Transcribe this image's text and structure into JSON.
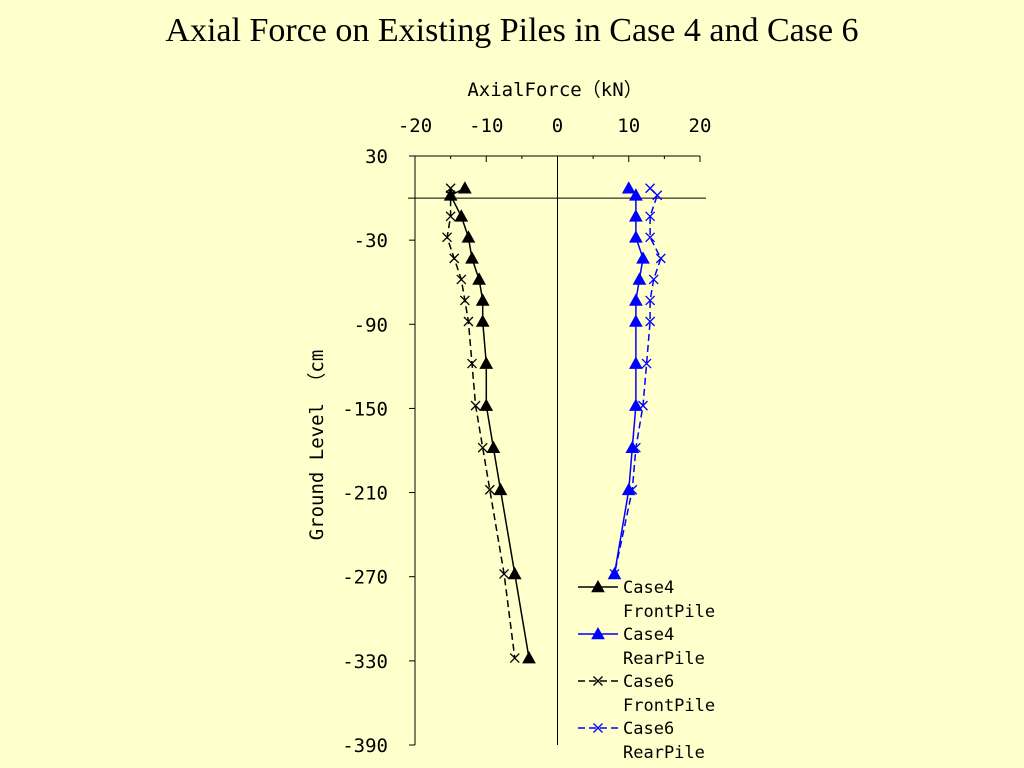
{
  "chart_data": {
    "type": "line",
    "title": "Axial Force on Existing Piles in Case 4 and Case 6",
    "xlabel": "AxialForce（kN）",
    "ylabel": "Ground Level （cm",
    "xlim": [
      -20,
      20
    ],
    "ylim": [
      -390,
      30
    ],
    "x_axis_position": "top",
    "x_ticks": [
      "-20",
      "-10",
      "0",
      "10",
      "20"
    ],
    "y_ticks": [
      "30",
      "-30",
      "-90",
      "-150",
      "-210",
      "-270",
      "-330",
      "-390"
    ],
    "x_tick_values": [
      -20,
      -10,
      0,
      10,
      20
    ],
    "y_tick_values": [
      30,
      -30,
      -90,
      -150,
      -210,
      -270,
      -330,
      -390
    ],
    "ground_line_level": 0,
    "grid": false,
    "legend_position": "bottom-right",
    "series": [
      {
        "name": "Case4 FrontPile",
        "legend_lines": [
          "Case4",
          "FrontPile"
        ],
        "color": "#000000",
        "line": "solid",
        "marker": "triangle",
        "points": [
          [
            -13,
            7
          ],
          [
            -15,
            2
          ],
          [
            -13.5,
            -13
          ],
          [
            -12.5,
            -28
          ],
          [
            -12,
            -43
          ],
          [
            -11,
            -58
          ],
          [
            -10.5,
            -73
          ],
          [
            -10.5,
            -88
          ],
          [
            -10,
            -118
          ],
          [
            -10,
            -148
          ],
          [
            -9,
            -178
          ],
          [
            -8,
            -208
          ],
          [
            -6,
            -268
          ],
          [
            -4,
            -328
          ]
        ]
      },
      {
        "name": "Case4 RearPile",
        "legend_lines": [
          "Case4",
          "RearPile"
        ],
        "color": "#0000ff",
        "line": "solid",
        "marker": "triangle",
        "points": [
          [
            10,
            7
          ],
          [
            11,
            2
          ],
          [
            11,
            -13
          ],
          [
            11,
            -28
          ],
          [
            12,
            -43
          ],
          [
            11.5,
            -58
          ],
          [
            11,
            -73
          ],
          [
            11,
            -88
          ],
          [
            11,
            -118
          ],
          [
            11,
            -148
          ],
          [
            10.5,
            -178
          ],
          [
            10,
            -208
          ],
          [
            8,
            -268
          ]
        ]
      },
      {
        "name": "Case6 FrontPile",
        "legend_lines": [
          "Case6",
          "FrontPile"
        ],
        "color": "#000000",
        "line": "dashed",
        "marker": "x",
        "points": [
          [
            -15,
            7
          ],
          [
            -15,
            2
          ],
          [
            -15,
            -13
          ],
          [
            -15.5,
            -28
          ],
          [
            -14.5,
            -43
          ],
          [
            -13.5,
            -58
          ],
          [
            -13,
            -73
          ],
          [
            -12.5,
            -88
          ],
          [
            -12,
            -118
          ],
          [
            -11.5,
            -148
          ],
          [
            -10.5,
            -178
          ],
          [
            -9.5,
            -208
          ],
          [
            -7.5,
            -268
          ],
          [
            -6,
            -328
          ]
        ]
      },
      {
        "name": "Case6 RearPile",
        "legend_lines": [
          "Case6",
          "RearPile"
        ],
        "color": "#0000ff",
        "line": "dashed",
        "marker": "x",
        "points": [
          [
            13,
            7
          ],
          [
            14,
            2
          ],
          [
            13,
            -13
          ],
          [
            13,
            -28
          ],
          [
            14.5,
            -43
          ],
          [
            13.5,
            -58
          ],
          [
            13,
            -73
          ],
          [
            13,
            -88
          ],
          [
            12.5,
            -118
          ],
          [
            12,
            -148
          ],
          [
            11,
            -178
          ],
          [
            10.5,
            -208
          ],
          [
            8,
            -268
          ]
        ]
      }
    ]
  }
}
